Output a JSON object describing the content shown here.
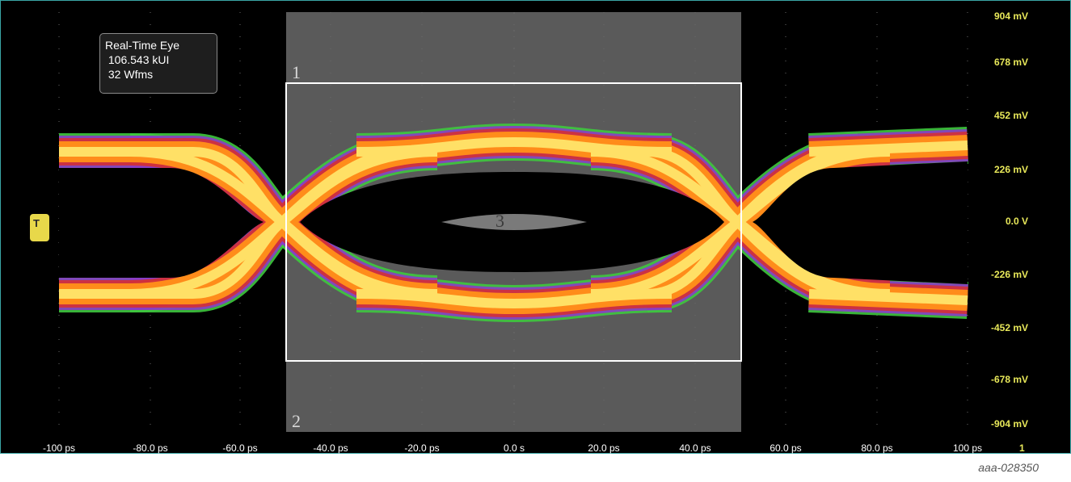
{
  "info_box": {
    "line1": "Real-Time Eye",
    "line2": "106.543 kUI",
    "line3": "32 Wfms"
  },
  "y_axis": {
    "ticks": [
      "904 mV",
      "678 mV",
      "452 mV",
      "226 mV",
      "0.0 V",
      "-226 mV",
      "-452 mV",
      "-678 mV",
      "-904 mV"
    ]
  },
  "x_axis": {
    "ticks": [
      "-100 ps",
      "-80.0 ps",
      "-60.0 ps",
      "-40.0 ps",
      "-20.0 ps",
      "0.0 s",
      "20.0 ps",
      "40.0 ps",
      "60.0 ps",
      "80.0 ps",
      "100 ps"
    ],
    "channel_marker": "1"
  },
  "cursors": {
    "label1": "1",
    "label2": "2",
    "label3": "3"
  },
  "trigger": {
    "icon": "trigger-icon",
    "glyph": "T"
  },
  "colors": {
    "background": "#000000",
    "grid": "#6a6a6a",
    "mask_region": "#5a5a5a",
    "box": "#ffffff",
    "axis_text": "#e8e85a",
    "eye_core": "#ffe066",
    "eye_mid": "#ff8c1a",
    "eye_edge": "#d0303c",
    "eye_outer": "#8a3cc8",
    "eye_halo": "#3ec83e"
  },
  "figure_id": "aaa-028350"
}
